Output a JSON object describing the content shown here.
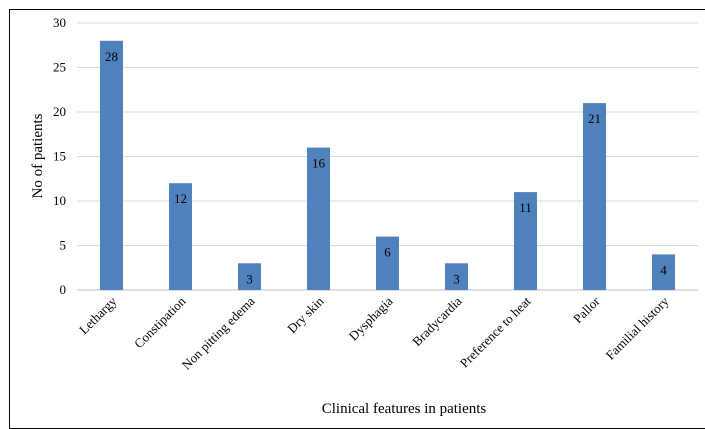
{
  "chart_data": {
    "type": "bar",
    "title": "",
    "xlabel": "Clinical features in patients",
    "ylabel": "No of patients",
    "categories": [
      "Lethargy",
      "Constipation",
      "Non pitting edema",
      "Dry skin",
      "Dysphagia",
      "Bradycardia",
      "Preference to heat",
      "Pallor",
      "Familial history"
    ],
    "values": [
      28,
      12,
      3,
      16,
      6,
      3,
      11,
      21,
      4
    ],
    "ylim": [
      0,
      30
    ],
    "yticks": [
      0,
      5,
      10,
      15,
      20,
      25,
      30
    ],
    "grid": "horizontal",
    "legend": "none",
    "bar_color": "#4f81bd",
    "grid_color": "#d9d9d9"
  }
}
